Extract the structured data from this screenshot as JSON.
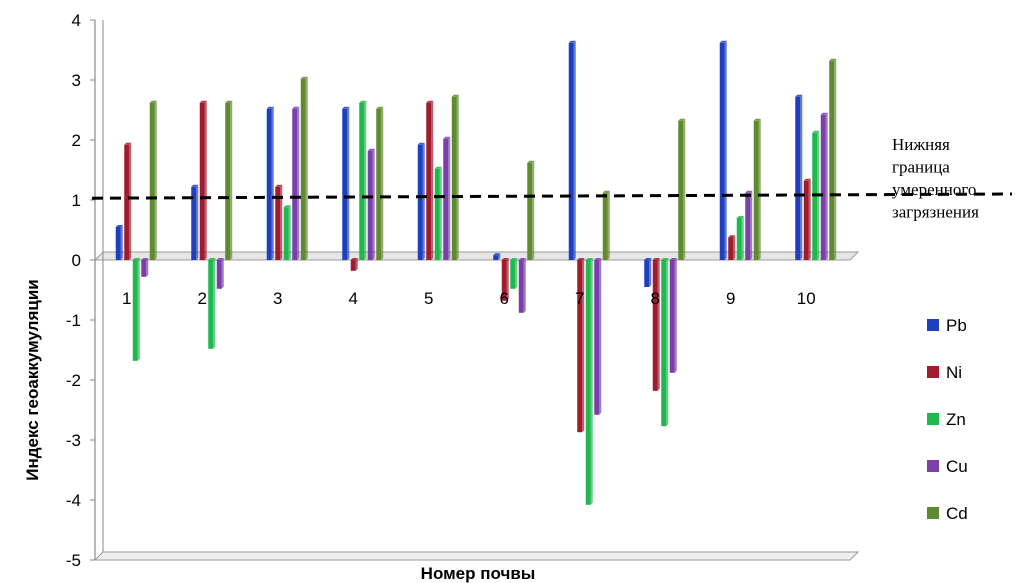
{
  "chart_data": {
    "type": "bar",
    "xlabel": "Номер почвы",
    "ylabel": "Индекс геоаккумуляции",
    "ylim": [
      -5,
      4
    ],
    "yticks": [
      4,
      3,
      2,
      1,
      0,
      -1,
      -2,
      -3,
      -4,
      -5
    ],
    "categories": [
      "1",
      "2",
      "3",
      "4",
      "5",
      "6",
      "7",
      "8",
      "9",
      "10"
    ],
    "series": [
      {
        "name": "Pb",
        "color": "#1f3fbf",
        "values": [
          0.55,
          1.22,
          2.52,
          2.52,
          1.92,
          0.08,
          3.62,
          -0.45,
          3.62,
          2.72
        ]
      },
      {
        "name": "Ni",
        "color": "#a01b2e",
        "values": [
          1.92,
          2.62,
          1.22,
          -0.18,
          2.62,
          -0.68,
          -2.87,
          -2.18,
          0.38,
          1.32
        ]
      },
      {
        "name": "Zn",
        "color": "#1fb84f",
        "values": [
          -1.68,
          -1.48,
          0.88,
          2.62,
          1.52,
          -0.48,
          -4.08,
          -2.77,
          0.7,
          2.12
        ]
      },
      {
        "name": "Cu",
        "color": "#7a3fa8",
        "values": [
          -0.28,
          -0.48,
          2.52,
          1.82,
          2.02,
          -0.88,
          -2.58,
          -1.88,
          1.12,
          2.42
        ]
      },
      {
        "name": "Cd",
        "color": "#5f8a2f",
        "values": [
          2.62,
          2.62,
          3.02,
          2.52,
          2.72,
          1.62,
          1.12,
          2.32,
          2.32,
          3.32
        ]
      }
    ],
    "reference_line": {
      "y_start": 1.03,
      "y_end": 1.1,
      "style": "dashed",
      "label_lines": [
        "Нижняя",
        "граница",
        "умеренного",
        "загрязнения"
      ]
    },
    "legend_position": "right",
    "grid": false
  }
}
